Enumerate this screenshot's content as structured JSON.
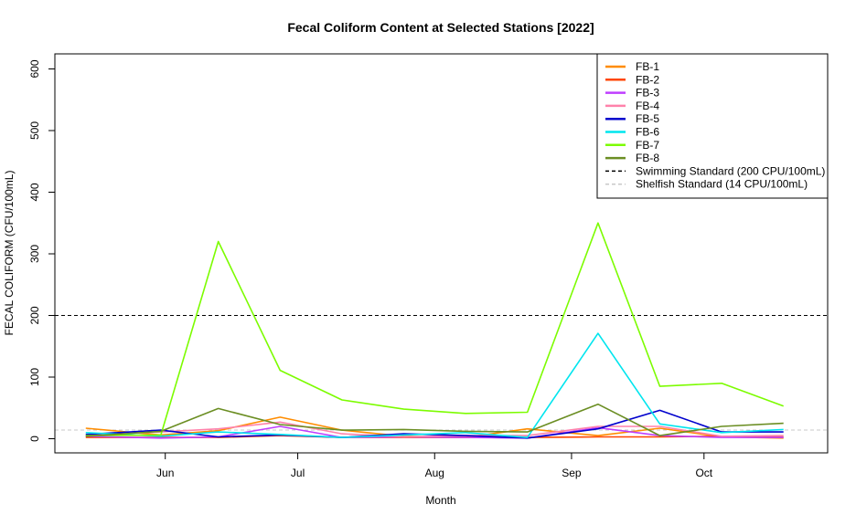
{
  "chart_data": {
    "type": "line",
    "title": "Fecal Coliform Content at Selected Stations [2022]",
    "xlabel": "Month",
    "ylabel": "FECAL COLIFORM (CFU/100mL)",
    "x_tick_labels": [
      "Jun",
      "Jul",
      "Aug",
      "Sep",
      "Oct"
    ],
    "x_tick_dates": [
      "2022-06-01",
      "2022-07-01",
      "2022-08-01",
      "2022-09-01",
      "2022-10-01"
    ],
    "x": [
      "2022-05-14",
      "2022-05-31",
      "2022-06-13",
      "2022-06-27",
      "2022-07-11",
      "2022-07-25",
      "2022-08-08",
      "2022-08-22",
      "2022-09-07",
      "2022-09-21",
      "2022-10-05",
      "2022-10-19"
    ],
    "xlim": [
      "2022-05-07",
      "2022-10-29"
    ],
    "ylim": [
      0,
      600
    ],
    "y_ticks": [
      0,
      100,
      200,
      300,
      400,
      500,
      600
    ],
    "grid": false,
    "legend_position": "top-right",
    "series": [
      {
        "name": "FB-1",
        "color": "#ff8c00",
        "values": [
          17,
          6,
          13,
          35,
          14,
          4,
          2,
          16,
          5,
          17,
          3,
          1
        ]
      },
      {
        "name": "FB-2",
        "color": "#ff4500",
        "values": [
          2,
          2,
          2,
          5,
          2,
          2,
          2,
          2,
          3,
          3,
          4,
          3
        ]
      },
      {
        "name": "FB-3",
        "color": "#bf3eff",
        "values": [
          4,
          1,
          3,
          20,
          2,
          3,
          2,
          1,
          18,
          5,
          2,
          2
        ]
      },
      {
        "name": "FB-4",
        "color": "#ff82ab",
        "values": [
          6,
          11,
          16,
          27,
          8,
          3,
          5,
          5,
          20,
          20,
          4,
          5
        ]
      },
      {
        "name": "FB-5",
        "color": "#0000cd",
        "values": [
          7,
          14,
          3,
          6,
          2,
          8,
          5,
          1,
          16,
          46,
          11,
          11
        ]
      },
      {
        "name": "FB-6",
        "color": "#00e5ee",
        "values": [
          10,
          4,
          11,
          7,
          2,
          6,
          10,
          2,
          171,
          24,
          10,
          15
        ]
      },
      {
        "name": "FB-7",
        "color": "#7cfc00",
        "values": [
          5,
          6,
          320,
          111,
          63,
          48,
          41,
          43,
          350,
          85,
          90,
          53
        ]
      },
      {
        "name": "FB-8",
        "color": "#6b8e23",
        "values": [
          4,
          12,
          49,
          23,
          14,
          15,
          12,
          11,
          56,
          5,
          20,
          25
        ]
      }
    ],
    "reference_lines": [
      {
        "name": "Swimming Standard (200 CPU/100mL)",
        "value": 200,
        "color": "#000000",
        "style": "dashed"
      },
      {
        "name": "Shelfish Standard (14 CPU/100mL)",
        "value": 14,
        "color": "#c8c8c8",
        "style": "dashed"
      }
    ]
  }
}
